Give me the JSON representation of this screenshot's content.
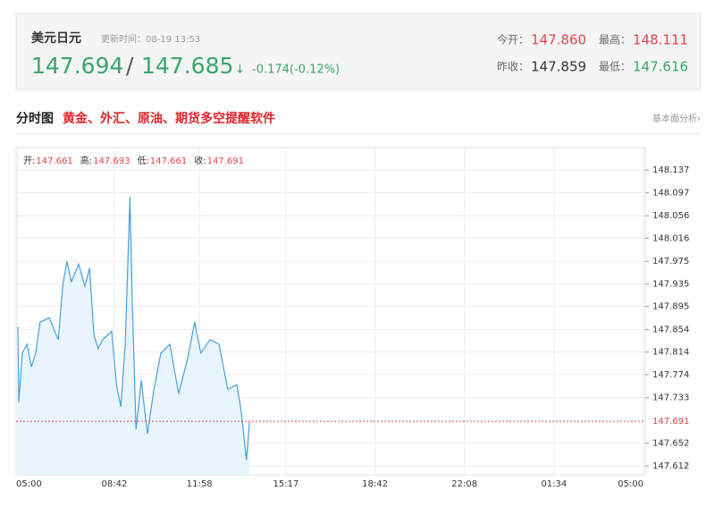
{
  "header": {
    "title": "美元日元",
    "update_time": "更新时间：08-19 13:53",
    "bid": "147.694",
    "separator": "/",
    "ask": "147.685",
    "arrow": "↓",
    "change": "-0.174(-0.12%)",
    "stats": [
      {
        "label": "今开：",
        "value": "147.860"
      },
      {
        "label": "最高：",
        "value": "148.111"
      },
      {
        "label": "昨收：",
        "value": "147.859"
      },
      {
        "label": "最低：",
        "value": "147.616"
      }
    ]
  },
  "tabs": {
    "active": "分时图",
    "promo": "黄金、外汇、原油、期货多空提醒软件",
    "link": "基本面分析›"
  },
  "chart_data": {
    "type": "line",
    "info": [
      {
        "label": "开:",
        "value": 147.661
      },
      {
        "label": "高:",
        "value": 147.693
      },
      {
        "label": "低:",
        "value": 147.661
      },
      {
        "label": "收:",
        "value": 147.691
      }
    ],
    "x": [
      "05:00",
      "05:02",
      "05:10",
      "05:21",
      "05:31",
      "05:41",
      "05:51",
      "06:12",
      "06:33",
      "06:43",
      "06:53",
      "07:03",
      "07:20",
      "07:34",
      "07:45",
      "07:55",
      "08:05",
      "08:15",
      "08:36",
      "08:47",
      "08:57",
      "09:07",
      "09:18",
      "09:23",
      "09:32",
      "09:44",
      "09:58",
      "10:13",
      "10:29",
      "10:50",
      "11:10",
      "11:31",
      "11:47",
      "12:01",
      "12:22",
      "12:43",
      "13:03",
      "13:24",
      "13:34",
      "13:46",
      "13:53"
    ],
    "values": [
      147.859,
      147.725,
      147.812,
      147.828,
      147.788,
      147.812,
      147.867,
      147.875,
      147.836,
      147.931,
      147.975,
      147.939,
      147.97,
      147.931,
      147.963,
      147.844,
      147.82,
      147.836,
      147.851,
      147.756,
      147.717,
      147.828,
      148.089,
      147.915,
      147.677,
      147.764,
      147.669,
      147.748,
      147.812,
      147.828,
      147.74,
      147.804,
      147.867,
      147.812,
      147.836,
      147.828,
      147.748,
      147.756,
      147.709,
      147.622,
      147.69
    ],
    "color": "#4a9ede",
    "fill": "#e8f5fc",
    "price_line": 147.691,
    "price_line_color": "#e0474c",
    "ylim": [
      147.596,
      148.177
    ],
    "yticks": [
      148.137,
      148.097,
      148.056,
      148.016,
      147.975,
      147.935,
      147.895,
      147.854,
      147.814,
      147.774,
      147.733,
      147.652,
      147.612
    ],
    "xticks": [
      "05:00",
      "08:42",
      "11:58",
      "15:17",
      "18:42",
      "22:08",
      "01:34",
      "05:00"
    ],
    "grid": true
  }
}
